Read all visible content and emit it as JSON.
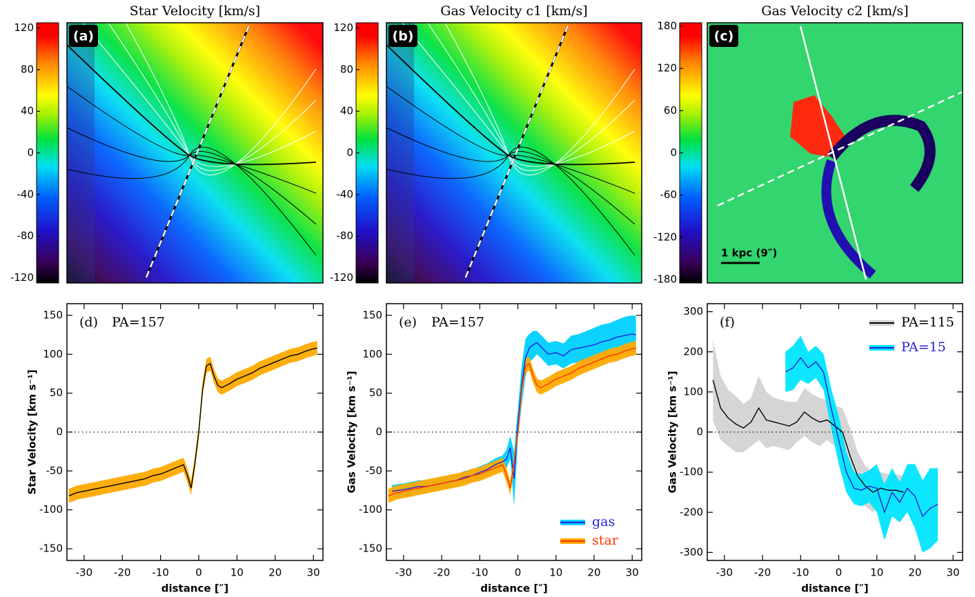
{
  "chart_data": [
    {
      "type": "map",
      "title": "Star Velocity [km/s]",
      "panel_label": "(a)",
      "ylim": [
        -125,
        125
      ],
      "yticks": [
        -120,
        -80,
        -40,
        0,
        40,
        80,
        120
      ]
    },
    {
      "type": "map",
      "title": "Gas Velocity c1 [km/s]",
      "panel_label": "(b)",
      "ylim": [
        -125,
        125
      ],
      "yticks": [
        -120,
        -80,
        -40,
        0,
        40,
        80,
        120
      ]
    },
    {
      "type": "map",
      "title": "Gas Velocity c2 [km/s]",
      "panel_label": "(c)",
      "annotation": "1 kpc (9″)",
      "ylim": [
        -185,
        185
      ],
      "yticks": [
        -180,
        -120,
        -60,
        0,
        60,
        120,
        180
      ]
    },
    {
      "type": "line",
      "panel_label": "(d)",
      "annotation": "PA=157",
      "xlabel": "distance [″]",
      "ylabel": "Star Velocity [km s⁻¹]",
      "xlim": [
        -34.5,
        32.5
      ],
      "ylim": [
        -165,
        165
      ],
      "xticks": [
        -30,
        -20,
        -10,
        0,
        10,
        20,
        30
      ],
      "yticks": [
        -150,
        -100,
        -50,
        0,
        50,
        100,
        150
      ],
      "hline": 0,
      "series": [
        {
          "color": "#000000",
          "band_color": "#ffaa00",
          "x": [
            -34,
            -32,
            -30,
            -28,
            -26,
            -24,
            -22,
            -20,
            -18,
            -16,
            -14,
            -12,
            -10,
            -8,
            -6,
            -4,
            -3,
            -2,
            -1,
            0,
            1,
            2,
            3,
            4,
            5,
            6,
            8,
            10,
            12,
            14,
            16,
            18,
            20,
            22,
            24,
            26,
            28,
            30,
            31
          ],
          "values": [
            -82,
            -78,
            -76,
            -74,
            -72,
            -70,
            -68,
            -66,
            -64,
            -62,
            -60,
            -56,
            -54,
            -50,
            -46,
            -42,
            -55,
            -72,
            -40,
            0,
            55,
            85,
            88,
            72,
            60,
            57,
            62,
            68,
            72,
            76,
            82,
            86,
            90,
            94,
            98,
            100,
            104,
            107,
            108
          ],
          "errors": [
            9,
            9,
            9,
            9,
            9,
            9,
            9,
            9,
            9,
            9,
            9,
            9,
            9,
            9,
            9,
            9,
            9,
            9,
            9,
            9,
            9,
            9,
            9,
            9,
            9,
            9,
            9,
            9,
            9,
            9,
            9,
            9,
            9,
            9,
            9,
            9,
            9,
            9,
            9
          ]
        }
      ]
    },
    {
      "type": "line",
      "panel_label": "(e)",
      "annotation": "PA=157",
      "xlabel": "distance [″]",
      "ylabel": "Gas Velocity [km s⁻¹]",
      "xlim": [
        -34.5,
        32.5
      ],
      "ylim": [
        -165,
        165
      ],
      "xticks": [
        -30,
        -20,
        -10,
        0,
        10,
        20,
        30
      ],
      "yticks": [
        -150,
        -100,
        -50,
        0,
        50,
        100,
        150
      ],
      "hline": 0,
      "legend": "lower right",
      "series": [
        {
          "name": "gas",
          "color": "#2020e0",
          "band_color": "#00d0ff",
          "x": [
            -33,
            -30,
            -28,
            -26,
            -24,
            -22,
            -20,
            -18,
            -16,
            -14,
            -12,
            -10,
            -8,
            -6,
            -4,
            -3,
            -2,
            -1,
            0,
            1,
            2,
            3,
            4,
            5,
            6,
            8,
            10,
            12,
            14,
            16,
            18,
            20,
            22,
            24,
            26,
            28,
            30,
            31
          ],
          "values": [
            -76,
            -74,
            -72,
            -70,
            -70,
            -68,
            -66,
            -64,
            -62,
            -58,
            -56,
            -52,
            -48,
            -42,
            -38,
            -35,
            -20,
            -60,
            10,
            60,
            95,
            108,
            112,
            115,
            110,
            100,
            102,
            98,
            106,
            108,
            110,
            112,
            116,
            118,
            122,
            124,
            126,
            125
          ],
          "errors": [
            8,
            8,
            8,
            8,
            8,
            8,
            8,
            8,
            8,
            8,
            8,
            8,
            8,
            8,
            8,
            12,
            15,
            35,
            20,
            25,
            25,
            18,
            18,
            15,
            15,
            15,
            15,
            16,
            18,
            18,
            20,
            22,
            22,
            22,
            22,
            24,
            24,
            24
          ]
        },
        {
          "name": "star",
          "color": "#ff3300",
          "band_color": "#ffaa00",
          "x": [
            -34,
            -32,
            -30,
            -28,
            -26,
            -24,
            -22,
            -20,
            -18,
            -16,
            -14,
            -12,
            -10,
            -8,
            -6,
            -4,
            -3,
            -2,
            -1,
            0,
            1,
            2,
            3,
            4,
            5,
            6,
            8,
            10,
            12,
            14,
            16,
            18,
            20,
            22,
            24,
            26,
            28,
            30,
            31
          ],
          "values": [
            -82,
            -78,
            -76,
            -74,
            -72,
            -70,
            -68,
            -66,
            -64,
            -62,
            -60,
            -56,
            -54,
            -50,
            -46,
            -42,
            -55,
            -72,
            -40,
            0,
            55,
            85,
            88,
            72,
            60,
            57,
            62,
            68,
            72,
            76,
            82,
            86,
            90,
            94,
            98,
            100,
            104,
            107,
            108
          ],
          "errors": [
            9,
            9,
            9,
            9,
            9,
            9,
            9,
            9,
            9,
            9,
            9,
            9,
            9,
            9,
            9,
            9,
            9,
            9,
            9,
            9,
            9,
            9,
            9,
            9,
            9,
            9,
            9,
            9,
            9,
            9,
            9,
            9,
            9,
            9,
            9,
            9,
            9,
            9,
            9
          ]
        }
      ]
    },
    {
      "type": "line",
      "panel_label": "(f)",
      "xlabel": "distance [″]",
      "ylabel": "Gas Velocity [km s⁻¹]",
      "xlim": [
        -34.5,
        32.5
      ],
      "ylim": [
        -320,
        320
      ],
      "xticks": [
        -30,
        -20,
        -10,
        0,
        10,
        20,
        30
      ],
      "yticks": [
        -300,
        -200,
        -100,
        0,
        100,
        200,
        300
      ],
      "hline": 0,
      "legend": "upper right",
      "series": [
        {
          "name": "PA=115",
          "color": "#000000",
          "band_color": "#d3d3d3",
          "x": [
            -33,
            -31,
            -29,
            -27,
            -25,
            -23,
            -21,
            -19,
            -17,
            -15,
            -13,
            -11,
            -9,
            -7,
            -5,
            -3,
            -1,
            1,
            3,
            5,
            7,
            9,
            11,
            13,
            15,
            17
          ],
          "values": [
            130,
            60,
            35,
            20,
            10,
            25,
            60,
            30,
            25,
            20,
            15,
            25,
            50,
            35,
            25,
            30,
            15,
            0,
            -60,
            -110,
            -135,
            -150,
            -140,
            -145,
            -145,
            -150
          ],
          "errors": [
            100,
            80,
            70,
            70,
            60,
            60,
            80,
            70,
            60,
            60,
            60,
            50,
            60,
            60,
            60,
            50,
            50,
            60,
            70,
            60,
            50,
            50,
            40,
            40,
            40,
            40
          ]
        },
        {
          "name": "PA=15",
          "color": "#2222cc",
          "band_color": "#00e5ff",
          "x": [
            -14,
            -12,
            -10,
            -8,
            -6,
            -4,
            -2,
            0,
            2,
            4,
            6,
            8,
            10,
            12,
            14,
            16,
            18,
            20,
            22,
            24,
            26
          ],
          "values": [
            150,
            160,
            185,
            160,
            175,
            150,
            60,
            -20,
            -100,
            -140,
            -145,
            -135,
            -140,
            -200,
            -150,
            -175,
            -140,
            -160,
            -210,
            -190,
            -180
          ],
          "errors": [
            50,
            55,
            55,
            40,
            40,
            45,
            50,
            60,
            50,
            40,
            40,
            40,
            60,
            70,
            60,
            50,
            60,
            80,
            90,
            100,
            90
          ]
        }
      ]
    }
  ]
}
